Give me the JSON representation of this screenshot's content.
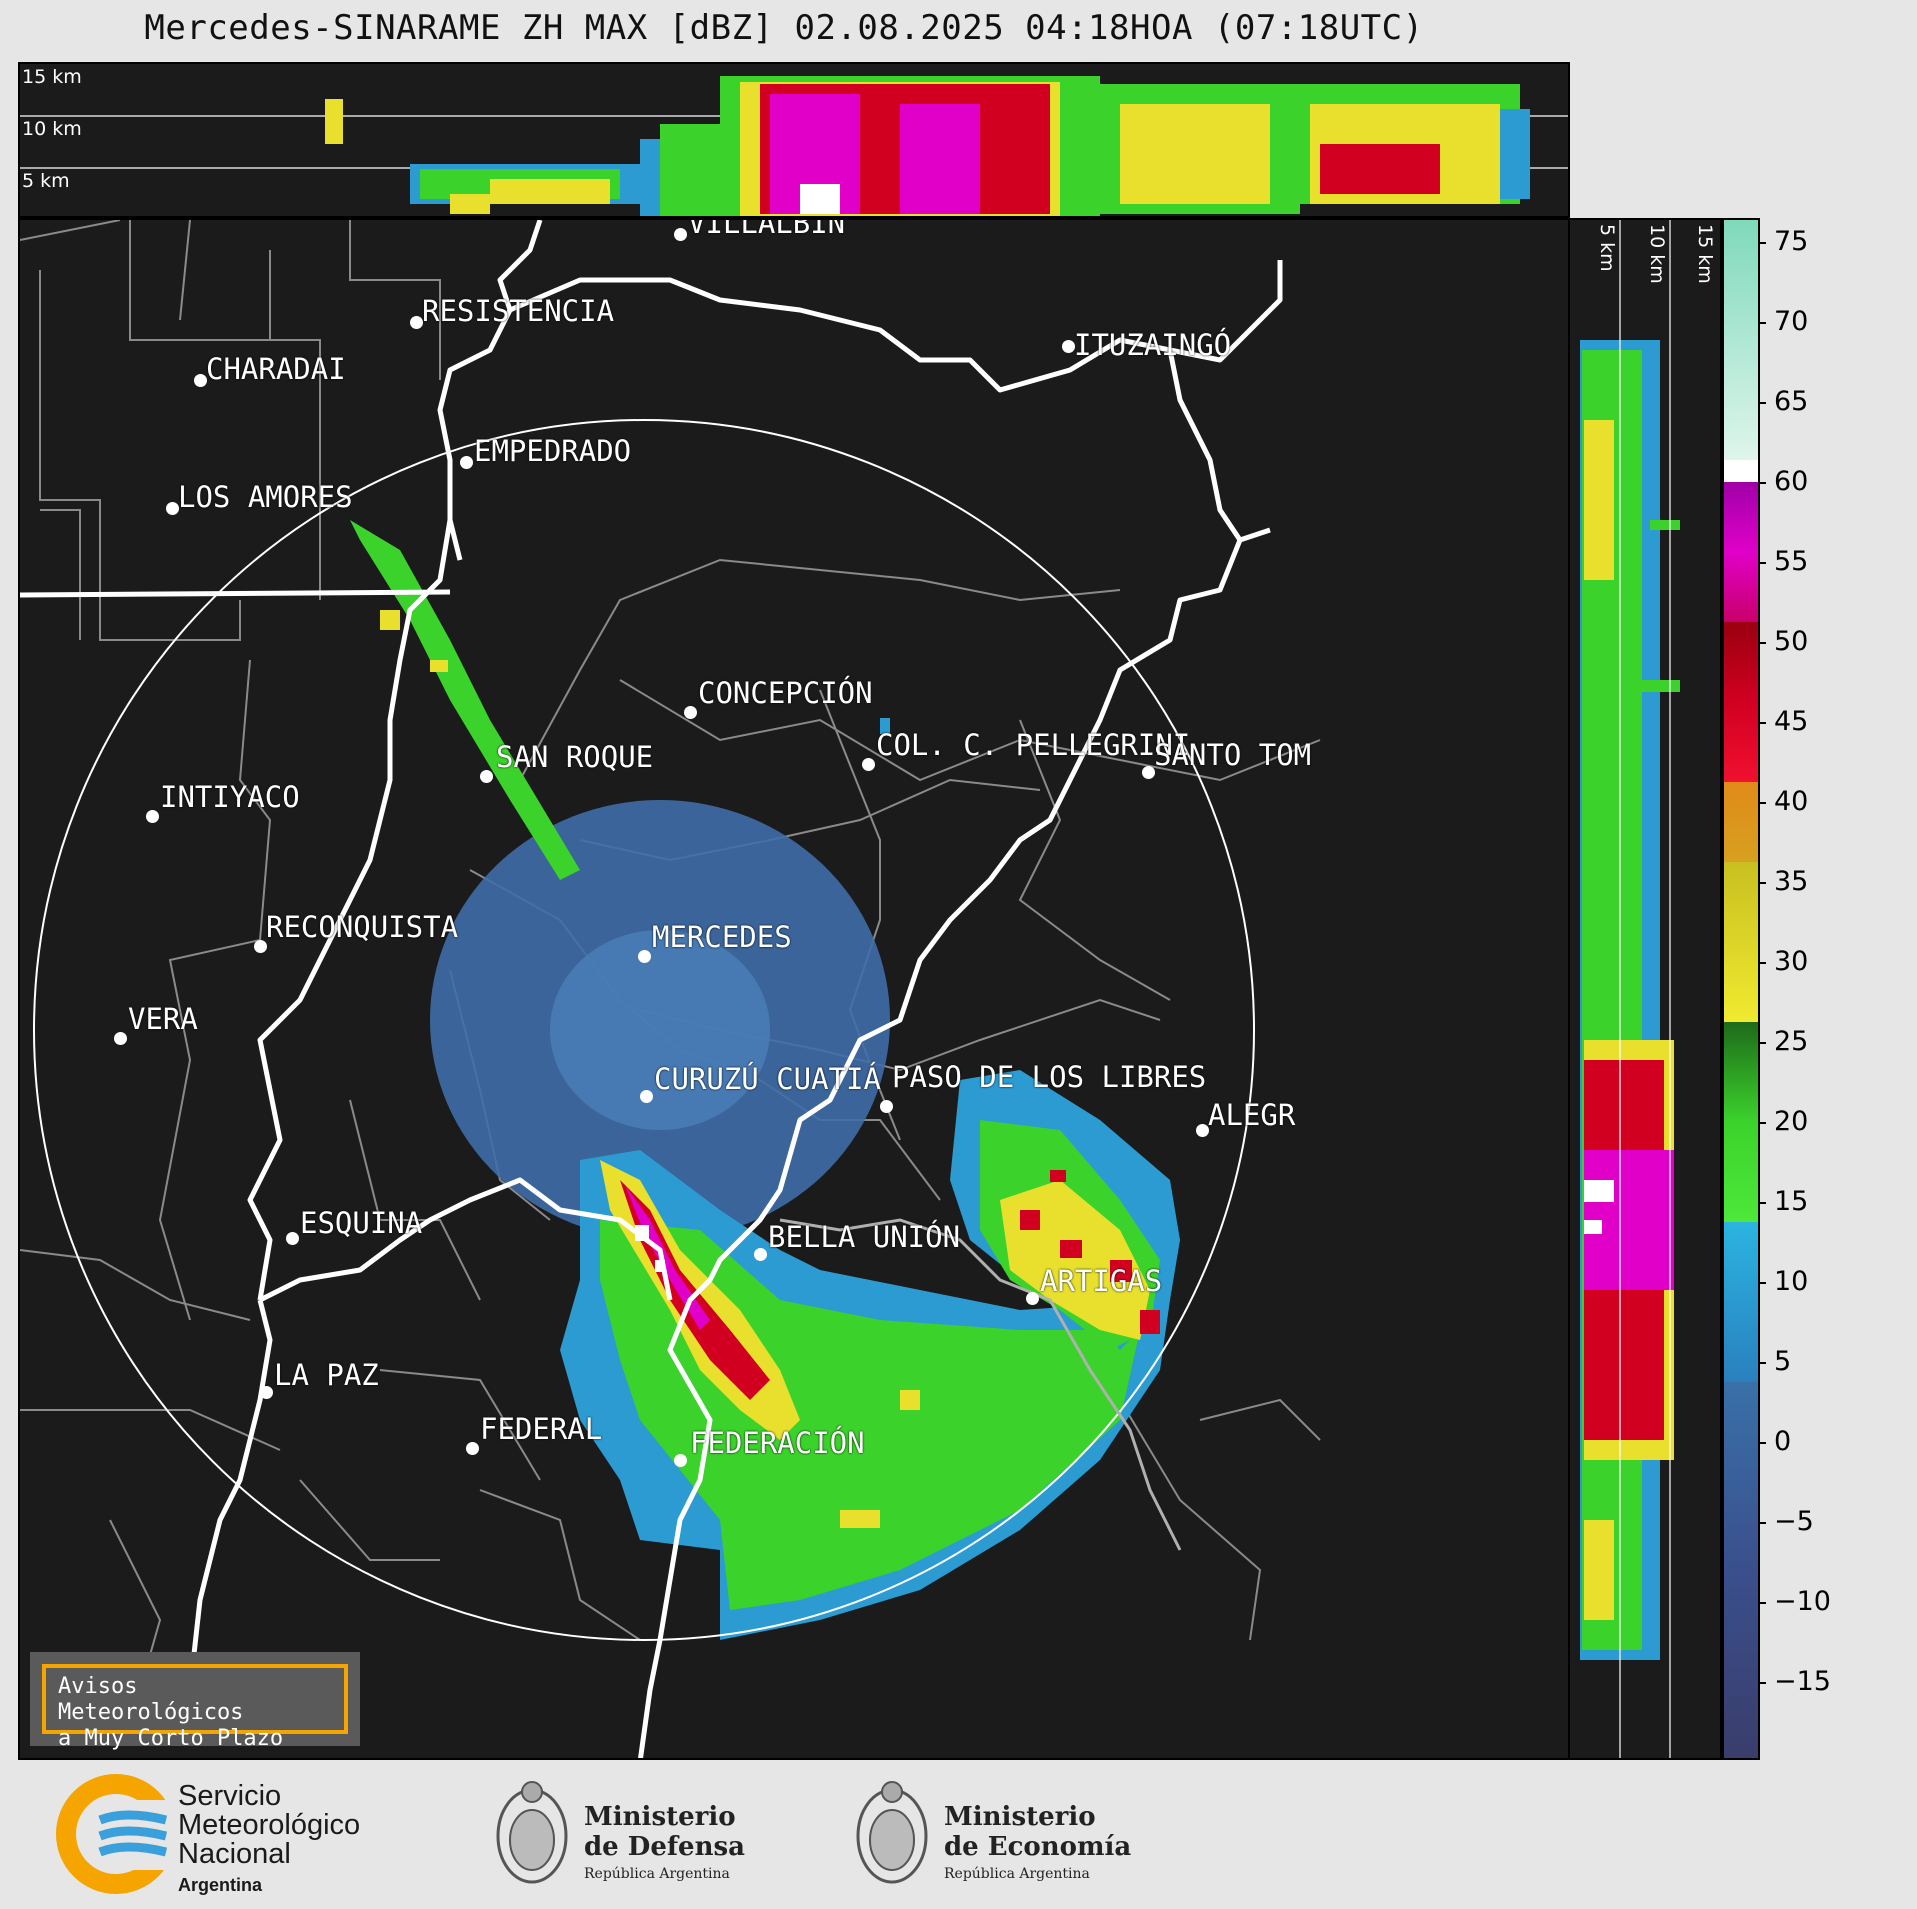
{
  "title": "Mercedes-SINARAME ZH MAX [dBZ] 02.08.2025 04:18HOA (07:18UTC)",
  "height_labels": [
    "15 km",
    "10 km",
    "5 km"
  ],
  "cities": [
    {
      "name": "VILLALBÍN"
    },
    {
      "name": "RESISTENCIA"
    },
    {
      "name": "CHARADAI"
    },
    {
      "name": "ITUZAINGÓ"
    },
    {
      "name": "EMPEDRADO"
    },
    {
      "name": "LOS AMORES"
    },
    {
      "name": "CONCEPCIÓN"
    },
    {
      "name": "SAN ROQUE"
    },
    {
      "name": "COL. C. PELLEGRINI"
    },
    {
      "name": "SANTO TOM"
    },
    {
      "name": "INTIYACO"
    },
    {
      "name": "MERCEDES"
    },
    {
      "name": "RECONQUISTA"
    },
    {
      "name": "VERA"
    },
    {
      "name": "CURUZÚ CUATIÁ"
    },
    {
      "name": "PASO DE LOS LIBRES"
    },
    {
      "name": "ALEGR"
    },
    {
      "name": "ESQUINA"
    },
    {
      "name": "BELLA UNIÓN"
    },
    {
      "name": "ARTIGAS"
    },
    {
      "name": "LA PAZ"
    },
    {
      "name": "FEDERAL"
    },
    {
      "name": "FEDERACIÓN"
    }
  ],
  "legend_box": {
    "line1": "Avisos Meteorológicos",
    "line2": "a Muy Corto Plazo"
  },
  "colorbar": {
    "unit": "dBZ",
    "range": [
      -20,
      77
    ],
    "ticks": [
      "75",
      "70",
      "65",
      "60",
      "55",
      "50",
      "45",
      "40",
      "35",
      "30",
      "25",
      "20",
      "15",
      "10",
      "5",
      "0",
      "−5",
      "−10",
      "−15"
    ],
    "colors": {
      "low": "#3a3d6b",
      "blue": "#2b9bd1",
      "green": "#3cd22c",
      "yellow": "#e8e02c",
      "orange": "#e08a1a",
      "red": "#d10020",
      "magenta": "#e000c8",
      "white": "#ffffff",
      "teal": "#7fd9bb"
    }
  },
  "footer": {
    "smn_line1": "Servicio",
    "smn_line2": "Meteorológico",
    "smn_line3": "Nacional",
    "smn_line4": "Argentina",
    "defensa_line1": "Ministerio",
    "defensa_line2": "de Defensa",
    "defensa_line3": "República Argentina",
    "economia_line1": "Ministerio",
    "economia_line2": "de Economía",
    "economia_line3": "República Argentina"
  }
}
